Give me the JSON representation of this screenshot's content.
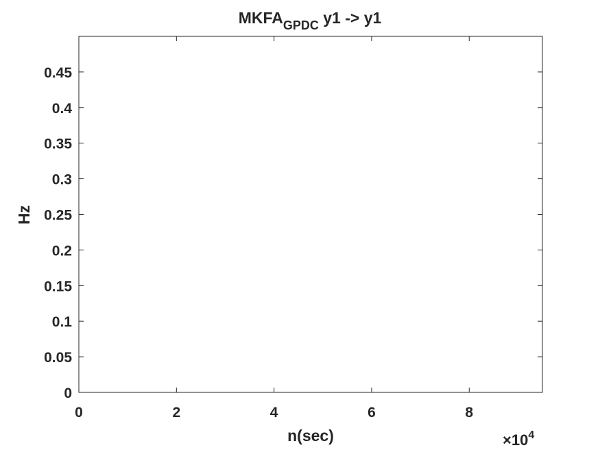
{
  "chart_data": {
    "type": "heatmap",
    "title": {
      "main": "MKFA",
      "subscript": "GPDC",
      "rest": " y1 -> y1"
    },
    "xlabel": "n(sec)",
    "ylabel": "Hz",
    "x_multiplier": {
      "base": "×10",
      "exponent": "4"
    },
    "xlim": [
      0,
      9.5
    ],
    "ylim": [
      0,
      0.5
    ],
    "x_ticks": [
      0,
      2,
      4,
      6,
      8
    ],
    "x_tick_labels": [
      "0",
      "2",
      "4",
      "6",
      "8"
    ],
    "y_ticks": [
      0,
      0.05,
      0.1,
      0.15,
      0.2,
      0.25,
      0.3,
      0.35,
      0.4,
      0.45
    ],
    "y_tick_labels": [
      "0",
      "0.05",
      "0.1",
      "0.15",
      "0.2",
      "0.25",
      "0.3",
      "0.35",
      "0.4",
      "0.45"
    ],
    "values": [],
    "grid": false,
    "box": true,
    "colors": {
      "axis": "#262626",
      "background": "#ffffff"
    }
  }
}
